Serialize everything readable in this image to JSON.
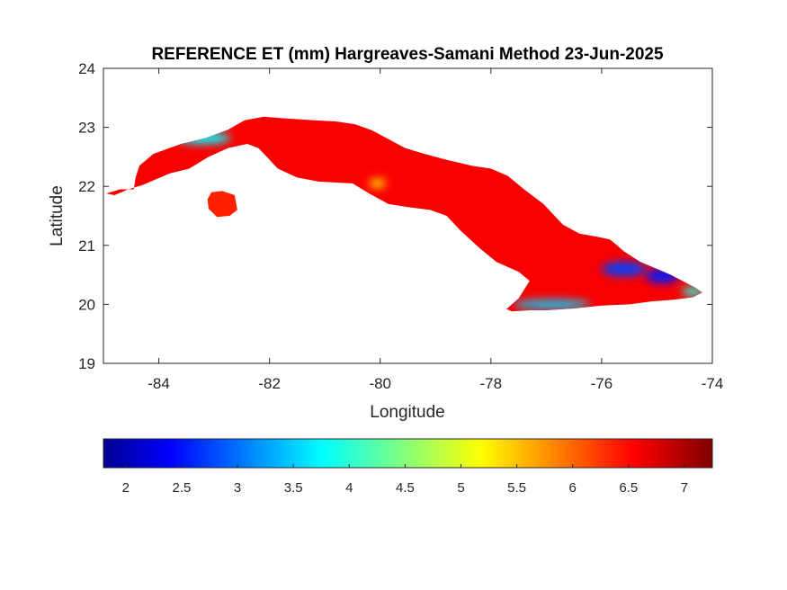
{
  "chart_data": {
    "type": "heatmap",
    "title": "REFERENCE ET (mm) Hargreaves-Samani Method  23-Jun-2025",
    "xlabel": "Longitude",
    "ylabel": "Latitude",
    "xlim": [
      -85,
      -74
    ],
    "ylim": [
      19,
      24
    ],
    "xticks": [
      -84,
      -82,
      -80,
      -78,
      -76,
      -74
    ],
    "yticks": [
      19,
      20,
      21,
      22,
      23,
      24
    ],
    "colorbar": {
      "colormap": "jet",
      "range": [
        1.8,
        7.25
      ],
      "ticks": [
        2,
        2.5,
        3,
        3.5,
        4,
        4.5,
        5,
        5.5,
        6,
        6.5,
        7
      ],
      "placement": "bottom"
    },
    "regions": [
      {
        "name": "Mainland Cuba outline",
        "points": [
          [
            -84.95,
            21.88
          ],
          [
            -84.7,
            21.95
          ],
          [
            -84.45,
            21.95
          ],
          [
            -84.42,
            22.15
          ],
          [
            -84.35,
            22.35
          ],
          [
            -84.1,
            22.55
          ],
          [
            -83.6,
            22.72
          ],
          [
            -83.15,
            22.82
          ],
          [
            -82.75,
            22.96
          ],
          [
            -82.45,
            23.12
          ],
          [
            -82.1,
            23.18
          ],
          [
            -81.7,
            23.15
          ],
          [
            -81.2,
            23.12
          ],
          [
            -80.8,
            23.1
          ],
          [
            -80.45,
            23.05
          ],
          [
            -80.15,
            22.95
          ],
          [
            -79.85,
            22.8
          ],
          [
            -79.55,
            22.65
          ],
          [
            -79.2,
            22.55
          ],
          [
            -78.8,
            22.45
          ],
          [
            -78.35,
            22.35
          ],
          [
            -78.0,
            22.3
          ],
          [
            -77.7,
            22.18
          ],
          [
            -77.4,
            21.95
          ],
          [
            -77.05,
            21.7
          ],
          [
            -76.7,
            21.35
          ],
          [
            -76.4,
            21.2
          ],
          [
            -76.1,
            21.15
          ],
          [
            -75.85,
            21.1
          ],
          [
            -75.72,
            21.0
          ],
          [
            -75.6,
            20.9
          ],
          [
            -75.3,
            20.72
          ],
          [
            -75.0,
            20.6
          ],
          [
            -74.75,
            20.5
          ],
          [
            -74.3,
            20.28
          ],
          [
            -74.18,
            20.2
          ],
          [
            -74.35,
            20.12
          ],
          [
            -74.7,
            20.08
          ],
          [
            -75.1,
            20.05
          ],
          [
            -75.5,
            20.0
          ],
          [
            -76.0,
            19.98
          ],
          [
            -76.5,
            19.93
          ],
          [
            -77.0,
            19.9
          ],
          [
            -77.3,
            19.9
          ],
          [
            -77.62,
            19.88
          ],
          [
            -77.72,
            19.92
          ],
          [
            -77.5,
            20.1
          ],
          [
            -77.3,
            20.4
          ],
          [
            -77.5,
            20.55
          ],
          [
            -77.9,
            20.72
          ],
          [
            -78.2,
            20.95
          ],
          [
            -78.55,
            21.25
          ],
          [
            -78.8,
            21.5
          ],
          [
            -79.1,
            21.6
          ],
          [
            -79.5,
            21.65
          ],
          [
            -79.85,
            21.7
          ],
          [
            -80.2,
            21.88
          ],
          [
            -80.5,
            22.05
          ],
          [
            -81.1,
            22.08
          ],
          [
            -81.5,
            22.15
          ],
          [
            -81.85,
            22.3
          ],
          [
            -82.05,
            22.5
          ],
          [
            -82.2,
            22.65
          ],
          [
            -82.4,
            22.72
          ],
          [
            -82.75,
            22.65
          ],
          [
            -83.1,
            22.5
          ],
          [
            -83.45,
            22.3
          ],
          [
            -83.8,
            22.22
          ],
          [
            -84.1,
            22.1
          ],
          [
            -84.3,
            22.02
          ],
          [
            -84.55,
            21.95
          ],
          [
            -84.8,
            21.85
          ]
        ],
        "mean_value": 6.6
      },
      {
        "name": "Isla de la Juventud outline",
        "points": [
          [
            -83.05,
            21.9
          ],
          [
            -82.85,
            21.92
          ],
          [
            -82.63,
            21.85
          ],
          [
            -82.58,
            21.6
          ],
          [
            -82.72,
            21.5
          ],
          [
            -82.95,
            21.48
          ],
          [
            -83.1,
            21.62
          ],
          [
            -83.12,
            21.78
          ]
        ],
        "mean_value": 6.4
      }
    ],
    "hotspots": [
      {
        "name": "Guanahacabibes / Pinar del Rio coast",
        "center": [
          -83.2,
          22.82
        ],
        "radius_deg": [
          0.5,
          0.1
        ],
        "value": 3.8
      },
      {
        "name": "Central north coast",
        "center": [
          -80.05,
          22.05
        ],
        "radius_deg": [
          0.15,
          0.08
        ],
        "value": 5.4
      },
      {
        "name": "Sierra Maestra",
        "center": [
          -76.9,
          20.0
        ],
        "radius_deg": [
          0.7,
          0.08
        ],
        "value": 3.6
      },
      {
        "name": "Sierra Cristal",
        "center": [
          -75.6,
          20.6
        ],
        "radius_deg": [
          0.4,
          0.12
        ],
        "value": 2.8
      },
      {
        "name": "Nipe-Sagua-Baracoa",
        "center": [
          -74.9,
          20.48
        ],
        "radius_deg": [
          0.3,
          0.12
        ],
        "value": 2.6
      },
      {
        "name": "Baracoa coast",
        "center": [
          -74.35,
          20.22
        ],
        "radius_deg": [
          0.2,
          0.08
        ],
        "value": 4.0
      }
    ]
  }
}
